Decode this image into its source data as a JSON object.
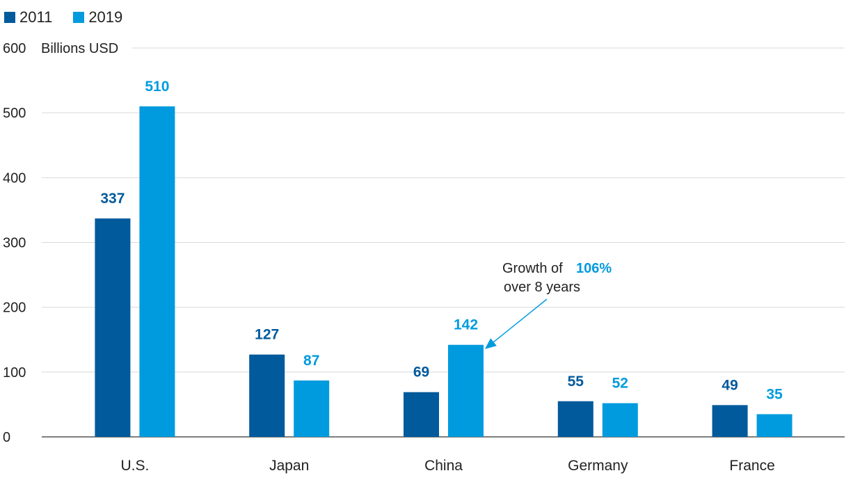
{
  "chart_data": {
    "type": "bar",
    "categories": [
      "U.S.",
      "Japan",
      "China",
      "Germany",
      "France"
    ],
    "series": [
      {
        "name": "2011",
        "values": [
          337,
          127,
          69,
          55,
          49
        ],
        "color": "#005a9c"
      },
      {
        "name": "2019",
        "values": [
          510,
          87,
          142,
          52,
          35
        ],
        "color": "#009bde"
      }
    ],
    "unit_label": "Billions USD",
    "ylim": [
      0,
      600
    ],
    "yticks": [
      0,
      100,
      200,
      300,
      400,
      500,
      600
    ],
    "grid": true,
    "legend": "top-left",
    "annotation": {
      "prefix": "Growth of",
      "highlight": "106%",
      "suffix": "over 8 years",
      "target_category": "China",
      "target_series": "2019"
    }
  }
}
